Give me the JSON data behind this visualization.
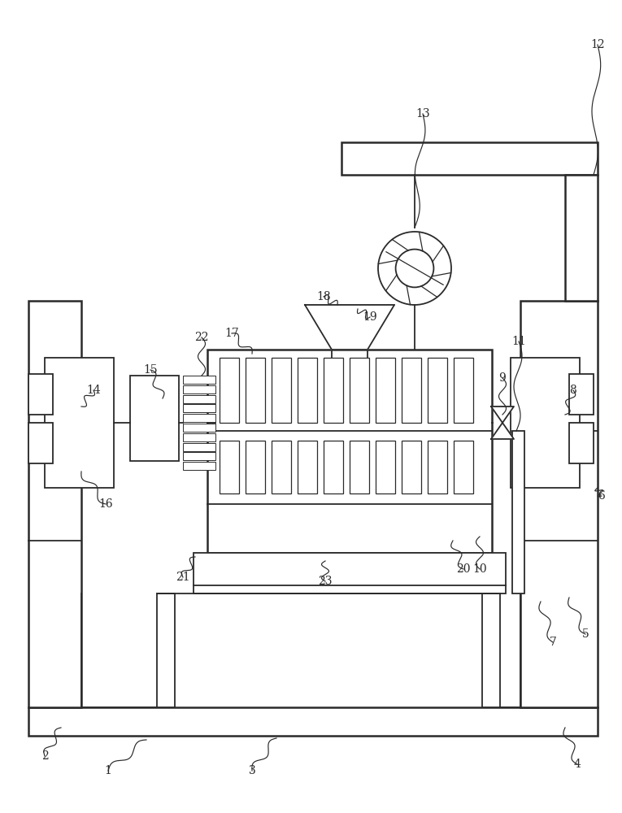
{
  "bg_color": "#ffffff",
  "line_color": "#2a2a2a",
  "lw_main": 1.8,
  "lw_med": 1.3,
  "lw_thin": 0.9,
  "fig_w": 7.65,
  "fig_h": 10.0
}
